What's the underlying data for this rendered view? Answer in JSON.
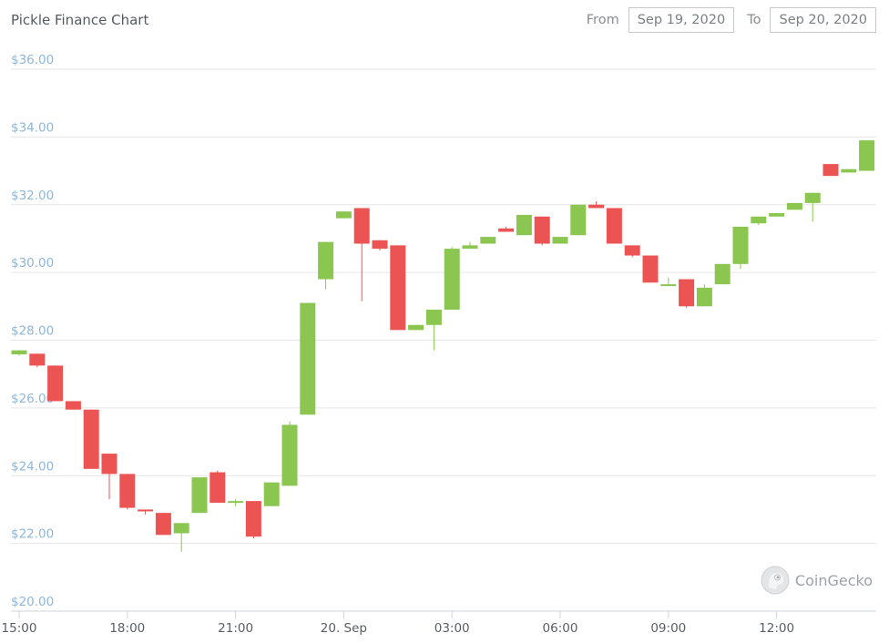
{
  "header": {
    "title": "Pickle Finance Chart",
    "from_label": "From",
    "from_date": "Sep 19, 2020",
    "to_label": "To",
    "to_date": "Sep 20, 2020"
  },
  "watermark": {
    "text": "CoinGecko",
    "icon": "gecko-logo-icon"
  },
  "colors": {
    "up": "#8ac650",
    "down": "#ec5353",
    "grid": "#e6e6e6",
    "y_tick_text": "#8fb6da",
    "x_tick_text": "#5a5e64"
  },
  "chart_data": {
    "type": "candlestick",
    "title": "Pickle Finance Chart",
    "xlabel": "",
    "ylabel": "",
    "ylim": [
      20,
      36
    ],
    "xlim": [
      15.0,
      39.0
    ],
    "grid": true,
    "y_ticks": [
      20,
      22,
      24,
      26,
      28,
      30,
      32,
      34,
      36
    ],
    "y_tick_labels": [
      "$20.00",
      "$22.00",
      "$24.00",
      "$26.00",
      "$28.00",
      "$30.00",
      "$32.00",
      "$34.00",
      "$36.00"
    ],
    "x_ticks": [
      15,
      18,
      21,
      24,
      27,
      30,
      33,
      36
    ],
    "x_tick_labels": [
      "15:00",
      "18:00",
      "21:00",
      "20. Sep",
      "03:00",
      "06:00",
      "09:00",
      "12:00"
    ],
    "candles": [
      {
        "t": 15.0,
        "open": 27.58,
        "high": 27.7,
        "low": 27.55,
        "close": 27.7
      },
      {
        "t": 15.5,
        "open": 27.6,
        "high": 27.6,
        "low": 27.2,
        "close": 27.25
      },
      {
        "t": 16.0,
        "open": 27.25,
        "high": 27.25,
        "low": 26.2,
        "close": 26.2
      },
      {
        "t": 16.5,
        "open": 26.2,
        "high": 26.2,
        "low": 25.95,
        "close": 25.95
      },
      {
        "t": 17.0,
        "open": 25.95,
        "high": 25.95,
        "low": 24.2,
        "close": 24.2
      },
      {
        "t": 17.5,
        "open": 24.65,
        "high": 24.65,
        "low": 23.3,
        "close": 24.05
      },
      {
        "t": 18.0,
        "open": 24.05,
        "high": 24.05,
        "low": 23.0,
        "close": 23.05
      },
      {
        "t": 18.5,
        "open": 23.0,
        "high": 23.0,
        "low": 22.85,
        "close": 22.95
      },
      {
        "t": 19.0,
        "open": 22.9,
        "high": 22.9,
        "low": 22.25,
        "close": 22.25
      },
      {
        "t": 19.5,
        "open": 22.3,
        "high": 22.6,
        "low": 21.75,
        "close": 22.6
      },
      {
        "t": 20.0,
        "open": 22.9,
        "high": 23.95,
        "low": 22.9,
        "close": 23.95
      },
      {
        "t": 20.5,
        "open": 24.1,
        "high": 24.15,
        "low": 23.2,
        "close": 23.2
      },
      {
        "t": 21.0,
        "open": 23.2,
        "high": 23.3,
        "low": 23.1,
        "close": 23.25
      },
      {
        "t": 21.5,
        "open": 23.25,
        "high": 23.25,
        "low": 22.15,
        "close": 22.2
      },
      {
        "t": 22.0,
        "open": 23.1,
        "high": 23.8,
        "low": 23.1,
        "close": 23.8
      },
      {
        "t": 22.5,
        "open": 23.7,
        "high": 25.6,
        "low": 23.7,
        "close": 25.5
      },
      {
        "t": 23.0,
        "open": 25.8,
        "high": 29.1,
        "low": 25.8,
        "close": 29.1
      },
      {
        "t": 23.5,
        "open": 29.8,
        "high": 30.9,
        "low": 29.5,
        "close": 30.9
      },
      {
        "t": 24.0,
        "open": 31.6,
        "high": 31.8,
        "low": 31.6,
        "close": 31.8
      },
      {
        "t": 24.5,
        "open": 31.9,
        "high": 31.9,
        "low": 29.15,
        "close": 30.85
      },
      {
        "t": 25.0,
        "open": 30.95,
        "high": 30.95,
        "low": 30.65,
        "close": 30.7
      },
      {
        "t": 25.5,
        "open": 30.8,
        "high": 30.8,
        "low": 28.3,
        "close": 28.3
      },
      {
        "t": 26.0,
        "open": 28.3,
        "high": 28.45,
        "low": 28.3,
        "close": 28.45
      },
      {
        "t": 26.5,
        "open": 28.45,
        "high": 28.9,
        "low": 27.7,
        "close": 28.9
      },
      {
        "t": 27.0,
        "open": 28.9,
        "high": 30.75,
        "low": 28.9,
        "close": 30.7
      },
      {
        "t": 27.5,
        "open": 30.7,
        "high": 30.9,
        "low": 30.7,
        "close": 30.8
      },
      {
        "t": 28.0,
        "open": 30.85,
        "high": 31.05,
        "low": 30.85,
        "close": 31.05
      },
      {
        "t": 28.5,
        "open": 31.3,
        "high": 31.35,
        "low": 31.2,
        "close": 31.2
      },
      {
        "t": 29.0,
        "open": 31.1,
        "high": 31.7,
        "low": 31.1,
        "close": 31.7
      },
      {
        "t": 29.5,
        "open": 31.65,
        "high": 31.65,
        "low": 30.8,
        "close": 30.85
      },
      {
        "t": 30.0,
        "open": 30.85,
        "high": 31.05,
        "low": 30.85,
        "close": 31.05
      },
      {
        "t": 30.5,
        "open": 31.1,
        "high": 32.0,
        "low": 31.1,
        "close": 32.0
      },
      {
        "t": 31.0,
        "open": 32.0,
        "high": 32.1,
        "low": 31.9,
        "close": 31.9
      },
      {
        "t": 31.5,
        "open": 31.9,
        "high": 31.9,
        "low": 30.85,
        "close": 30.85
      },
      {
        "t": 32.0,
        "open": 30.8,
        "high": 30.8,
        "low": 30.45,
        "close": 30.5
      },
      {
        "t": 32.5,
        "open": 30.5,
        "high": 30.5,
        "low": 29.7,
        "close": 29.7
      },
      {
        "t": 33.0,
        "open": 29.65,
        "high": 29.85,
        "low": 29.6,
        "close": 29.65
      },
      {
        "t": 33.5,
        "open": 29.8,
        "high": 29.8,
        "low": 28.95,
        "close": 29.0
      },
      {
        "t": 34.0,
        "open": 29.0,
        "high": 29.65,
        "low": 29.0,
        "close": 29.55
      },
      {
        "t": 34.5,
        "open": 29.65,
        "high": 30.25,
        "low": 29.65,
        "close": 30.25
      },
      {
        "t": 35.0,
        "open": 30.25,
        "high": 31.35,
        "low": 30.1,
        "close": 31.35
      },
      {
        "t": 35.5,
        "open": 31.45,
        "high": 31.65,
        "low": 31.4,
        "close": 31.65
      },
      {
        "t": 36.0,
        "open": 31.65,
        "high": 31.75,
        "low": 31.65,
        "close": 31.75
      },
      {
        "t": 36.5,
        "open": 31.85,
        "high": 32.05,
        "low": 31.85,
        "close": 32.05
      },
      {
        "t": 37.0,
        "open": 32.05,
        "high": 32.35,
        "low": 31.5,
        "close": 32.35
      },
      {
        "t": 37.5,
        "open": 33.2,
        "high": 33.2,
        "low": 32.85,
        "close": 32.85
      },
      {
        "t": 38.0,
        "open": 32.95,
        "high": 33.05,
        "low": 32.95,
        "close": 33.05
      },
      {
        "t": 38.5,
        "open": 33.0,
        "high": 33.9,
        "low": 33.0,
        "close": 33.9
      }
    ]
  }
}
